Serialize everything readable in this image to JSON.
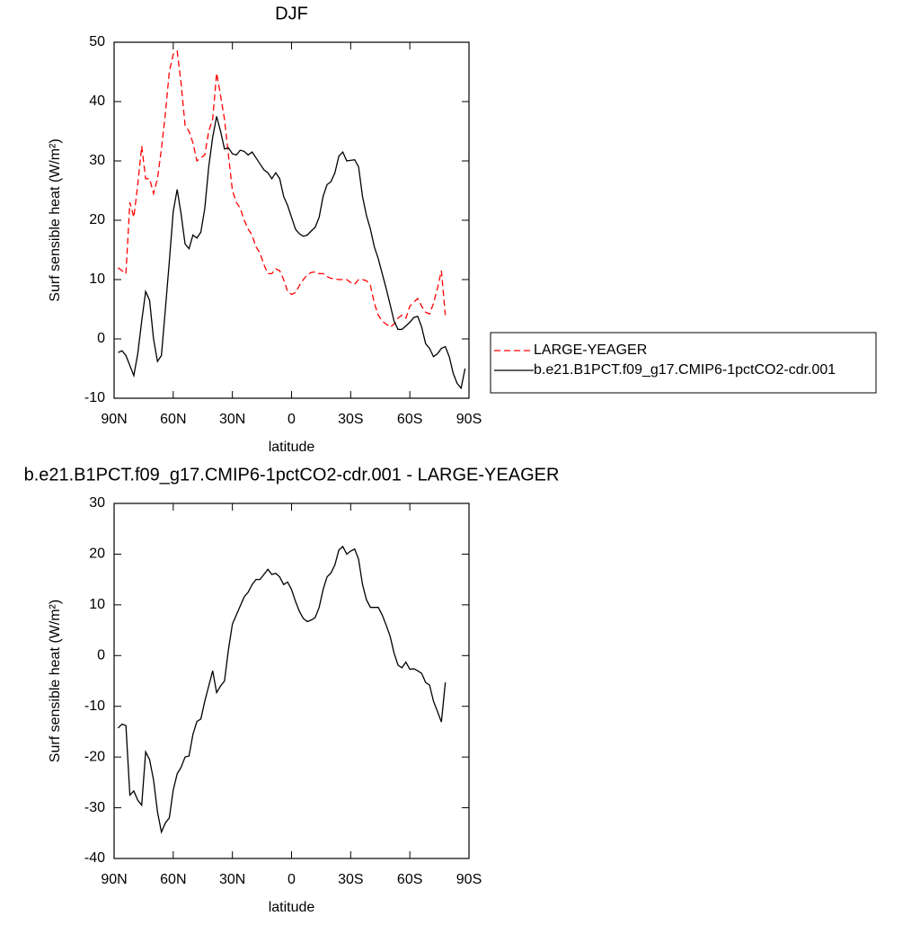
{
  "chart_data": [
    {
      "type": "line",
      "title": "DJF",
      "xlabel": "latitude",
      "ylabel": "Surf sensible heat (W/m²)",
      "xlim": [
        90,
        -90
      ],
      "xticks": [
        {
          "value": 90,
          "label": "90N"
        },
        {
          "value": 60,
          "label": "60N"
        },
        {
          "value": 30,
          "label": "30N"
        },
        0,
        {
          "value": -30,
          "label": "30S"
        },
        {
          "value": -60,
          "label": "60S"
        },
        {
          "value": -90,
          "label": "90S"
        }
      ],
      "ylim": [
        -10,
        50
      ],
      "yticks": [
        -10,
        0,
        10,
        20,
        30,
        40,
        50
      ],
      "legend": "right",
      "x": [
        88,
        86,
        84,
        82,
        80,
        78,
        76,
        74,
        72,
        70,
        68,
        66,
        64,
        62,
        60,
        58,
        56,
        54,
        52,
        50,
        48,
        46,
        44,
        42,
        40,
        38,
        36,
        34,
        32,
        30,
        28,
        26,
        24,
        22,
        20,
        18,
        16,
        14,
        12,
        10,
        8,
        6,
        4,
        2,
        0,
        -2,
        -4,
        -6,
        -8,
        -10,
        -12,
        -14,
        -16,
        -18,
        -20,
        -22,
        -24,
        -26,
        -28,
        -30,
        -32,
        -34,
        -36,
        -38,
        -40,
        -42,
        -44,
        -46,
        -48,
        -50,
        -52,
        -54,
        -56,
        -58,
        -60,
        -62,
        -64,
        -66,
        -68,
        -70,
        -72,
        -74,
        -76,
        -78,
        -80,
        -82,
        -84,
        -86,
        -88
      ],
      "series": [
        {
          "name": "LARGE-YEAGER",
          "color": "#ff0000",
          "line_style": "dashed",
          "values": [
            12,
            11.5,
            11,
            23,
            20.5,
            26,
            32.5,
            27,
            27,
            24.5,
            27,
            32,
            38,
            45,
            48,
            48.5,
            43,
            36,
            35,
            33,
            30,
            30.5,
            31,
            35,
            37,
            44.8,
            41,
            37,
            31,
            25,
            23,
            22,
            20,
            18.5,
            17.5,
            15.5,
            14.5,
            12.5,
            11,
            11,
            11.8,
            11.5,
            10,
            8,
            7.5,
            7.8,
            9,
            10,
            10.8,
            11.2,
            11.3,
            11,
            11,
            10.5,
            10.2,
            10.1,
            10,
            10,
            10,
            9.5,
            9.2,
            10,
            10,
            9.8,
            9,
            6,
            4,
            3,
            2.5,
            2,
            2.5,
            3.5,
            4,
            3.5,
            5.5,
            6.2,
            6.8,
            5.5,
            4.5,
            4.2,
            6,
            8.5,
            11.5,
            4,
            null,
            null,
            null,
            null,
            null
          ]
        },
        {
          "name": "b.e21.B1PCT.f09_g17.CMIP6-1pctCO2-cdr.001",
          "color": "#000000",
          "line_style": "solid",
          "values": [
            -2.3,
            -2,
            -2.8,
            -4.5,
            -6.2,
            -2.5,
            3,
            8,
            6.5,
            0,
            -3.8,
            -2.8,
            5,
            13,
            21.5,
            25.2,
            21,
            16,
            15.2,
            17.5,
            17,
            18,
            22,
            29,
            34,
            37.5,
            35,
            32,
            32.2,
            31.2,
            31,
            31.8,
            31.6,
            31,
            31.5,
            30.5,
            29.5,
            28.5,
            28,
            27,
            28,
            27,
            24,
            22.5,
            20.5,
            18.5,
            17.7,
            17.3,
            17.5,
            18.2,
            18.8,
            20.5,
            24,
            26,
            26.5,
            28,
            30.8,
            31.5,
            30,
            30.1,
            30.2,
            29,
            24,
            20.8,
            18.5,
            15.5,
            13.5,
            11,
            8.5,
            5.8,
            3,
            1.6,
            1.6,
            2.2,
            2.8,
            3.6,
            3.8,
            2,
            -0.8,
            -1.6,
            -3,
            -2.5,
            -1.6,
            -1.3,
            -3,
            -5.8,
            -7.5,
            -8.3,
            -5
          ]
        }
      ]
    },
    {
      "type": "line",
      "title": "b.e21.B1PCT.f09_g17.CMIP6-1pctCO2-cdr.001 - LARGE-YEAGER",
      "xlabel": "latitude",
      "ylabel": "Surf sensible heat (W/m²)",
      "xlim": [
        90,
        -90
      ],
      "xticks": [
        {
          "value": 90,
          "label": "90N"
        },
        {
          "value": 60,
          "label": "60N"
        },
        {
          "value": 30,
          "label": "30N"
        },
        0,
        {
          "value": -30,
          "label": "30S"
        },
        {
          "value": -60,
          "label": "60S"
        },
        {
          "value": -90,
          "label": "90S"
        }
      ],
      "ylim": [
        -40,
        30
      ],
      "yticks": [
        -40,
        -30,
        -20,
        -10,
        0,
        10,
        20,
        30
      ],
      "color": "#000000",
      "x": [
        88,
        86,
        84,
        82,
        80,
        78,
        76,
        74,
        72,
        70,
        68,
        66,
        64,
        62,
        60,
        58,
        56,
        54,
        52,
        50,
        48,
        46,
        44,
        42,
        40,
        38,
        36,
        34,
        32,
        30,
        28,
        26,
        24,
        22,
        20,
        18,
        16,
        14,
        12,
        10,
        8,
        6,
        4,
        2,
        0,
        -2,
        -4,
        -6,
        -8,
        -10,
        -12,
        -14,
        -16,
        -18,
        -20,
        -22,
        -24,
        -26,
        -28,
        -30,
        -32,
        -34,
        -36,
        -38,
        -40,
        -42,
        -44,
        -46,
        -48,
        -50,
        -52,
        -54,
        -56,
        -58,
        -60,
        -62,
        -64,
        -66,
        -68,
        -70,
        -72,
        -74,
        -76,
        -78,
        -80,
        -82,
        -84,
        -86,
        -88
      ],
      "values": [
        -14.3,
        -13.5,
        -13.8,
        -27.5,
        -26.7,
        -28.5,
        -29.5,
        -19,
        -20.5,
        -24.5,
        -30.8,
        -34.8,
        -33,
        -32,
        -26.5,
        -23.3,
        -22,
        -20,
        -19.8,
        -15.5,
        -13,
        -12.5,
        -9,
        -6,
        -3,
        -7.3,
        -6,
        -5,
        1.2,
        6.2,
        8,
        9.8,
        11.6,
        12.5,
        14,
        15,
        15,
        16,
        17,
        16,
        16.2,
        15.5,
        14,
        14.5,
        13,
        10.7,
        8.7,
        7.3,
        6.7,
        7,
        7.5,
        9.5,
        13,
        15.5,
        16.3,
        17.9,
        20.8,
        21.5,
        20,
        20.6,
        21,
        19,
        14,
        11,
        9.5,
        9.5,
        9.5,
        8,
        6,
        3.8,
        0.5,
        -1.9,
        -2.4,
        -1.3,
        -2.7,
        -2.6,
        -3,
        -3.5,
        -5.3,
        -5.8,
        -9,
        -11,
        -13.1,
        -5.3,
        null,
        null,
        null,
        null,
        null
      ]
    }
  ]
}
